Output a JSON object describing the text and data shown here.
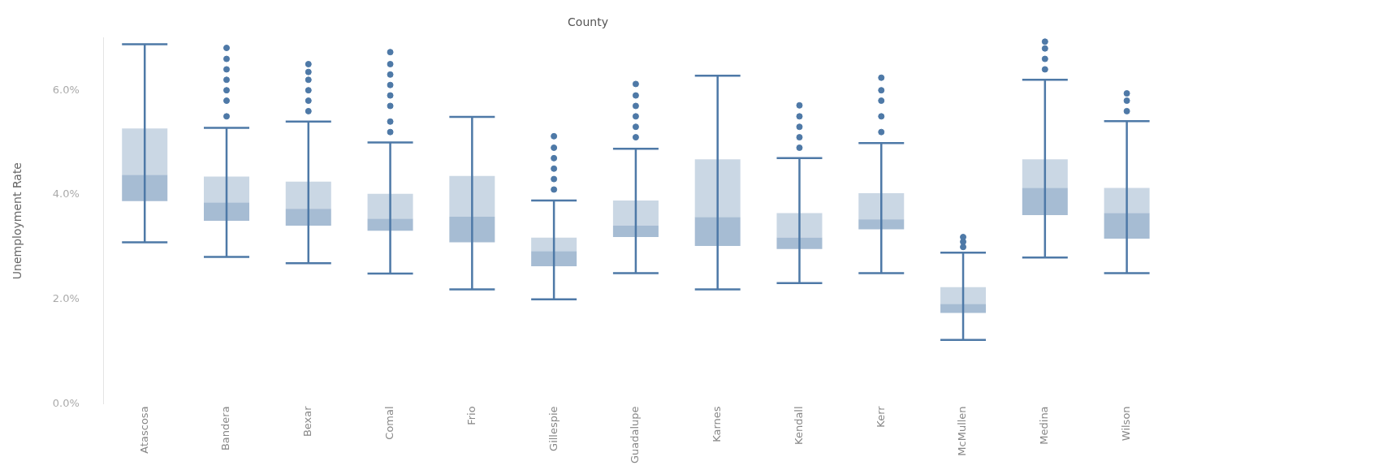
{
  "chart_data": {
    "type": "box",
    "title": "County",
    "ylabel": "Unemployment Rate",
    "categories": [
      "Atascosa",
      "Bandera",
      "Bexar",
      "Comal",
      "Frio",
      "Gillespie",
      "Guadalupe",
      "Karnes",
      "Kendall",
      "Kerr",
      "McMullen",
      "Medina",
      "Wilson"
    ],
    "series": [
      {
        "color": "#4e79a7",
        "boxes": [
          {
            "low": 3.09,
            "q1": 3.88,
            "median": 4.38,
            "q3": 5.27,
            "high": 6.88
          },
          {
            "low": 2.81,
            "q1": 3.5,
            "median": 3.85,
            "q3": 4.35,
            "high": 5.28,
            "outliers": [
              5.5,
              5.8,
              6.0,
              6.2,
              6.4,
              6.6,
              6.81
            ]
          },
          {
            "low": 2.69,
            "q1": 3.41,
            "median": 3.73,
            "q3": 4.25,
            "high": 5.4,
            "outliers": [
              5.6,
              5.8,
              6.0,
              6.2,
              6.35,
              6.5
            ]
          },
          {
            "low": 2.49,
            "q1": 3.31,
            "median": 3.54,
            "q3": 4.02,
            "high": 5.0,
            "outliers": [
              5.2,
              5.4,
              5.7,
              5.9,
              6.1,
              6.3,
              6.5,
              6.73
            ]
          },
          {
            "low": 2.19,
            "q1": 3.09,
            "median": 3.58,
            "q3": 4.36,
            "high": 5.49
          },
          {
            "low": 2.0,
            "q1": 2.63,
            "median": 2.92,
            "q3": 3.18,
            "high": 3.89,
            "outliers": [
              4.1,
              4.3,
              4.5,
              4.7,
              4.9,
              5.12
            ]
          },
          {
            "low": 2.5,
            "q1": 3.19,
            "median": 3.41,
            "q3": 3.89,
            "high": 4.88,
            "outliers": [
              5.1,
              5.3,
              5.5,
              5.7,
              5.9,
              6.12
            ]
          },
          {
            "low": 2.19,
            "q1": 3.02,
            "median": 3.57,
            "q3": 4.68,
            "high": 6.28
          },
          {
            "low": 2.31,
            "q1": 2.96,
            "median": 3.18,
            "q3": 3.65,
            "high": 4.7,
            "outliers": [
              4.9,
              5.1,
              5.3,
              5.5,
              5.71
            ]
          },
          {
            "low": 2.5,
            "q1": 3.34,
            "median": 3.53,
            "q3": 4.03,
            "high": 4.99,
            "outliers": [
              5.2,
              5.5,
              5.8,
              6.0,
              6.24
            ]
          },
          {
            "low": 1.22,
            "q1": 1.74,
            "median": 1.91,
            "q3": 2.23,
            "high": 2.89,
            "outliers": [
              3.0,
              3.1,
              3.19
            ]
          },
          {
            "low": 2.8,
            "q1": 3.61,
            "median": 4.13,
            "q3": 4.68,
            "high": 6.2,
            "outliers": [
              6.4,
              6.6,
              6.8,
              6.93
            ]
          },
          {
            "low": 2.5,
            "q1": 3.16,
            "median": 3.65,
            "q3": 4.13,
            "high": 5.41,
            "outliers": [
              5.6,
              5.8,
              5.94
            ]
          }
        ]
      }
    ],
    "ylim": [
      0,
      7
    ],
    "yticks": [
      {
        "value": 0,
        "label": "0.0%"
      },
      {
        "value": 2,
        "label": "2.0%"
      },
      {
        "value": 4,
        "label": "4.0%"
      },
      {
        "value": 6,
        "label": "6.0%"
      }
    ],
    "grid": false,
    "legend": false,
    "marker": "circle"
  }
}
